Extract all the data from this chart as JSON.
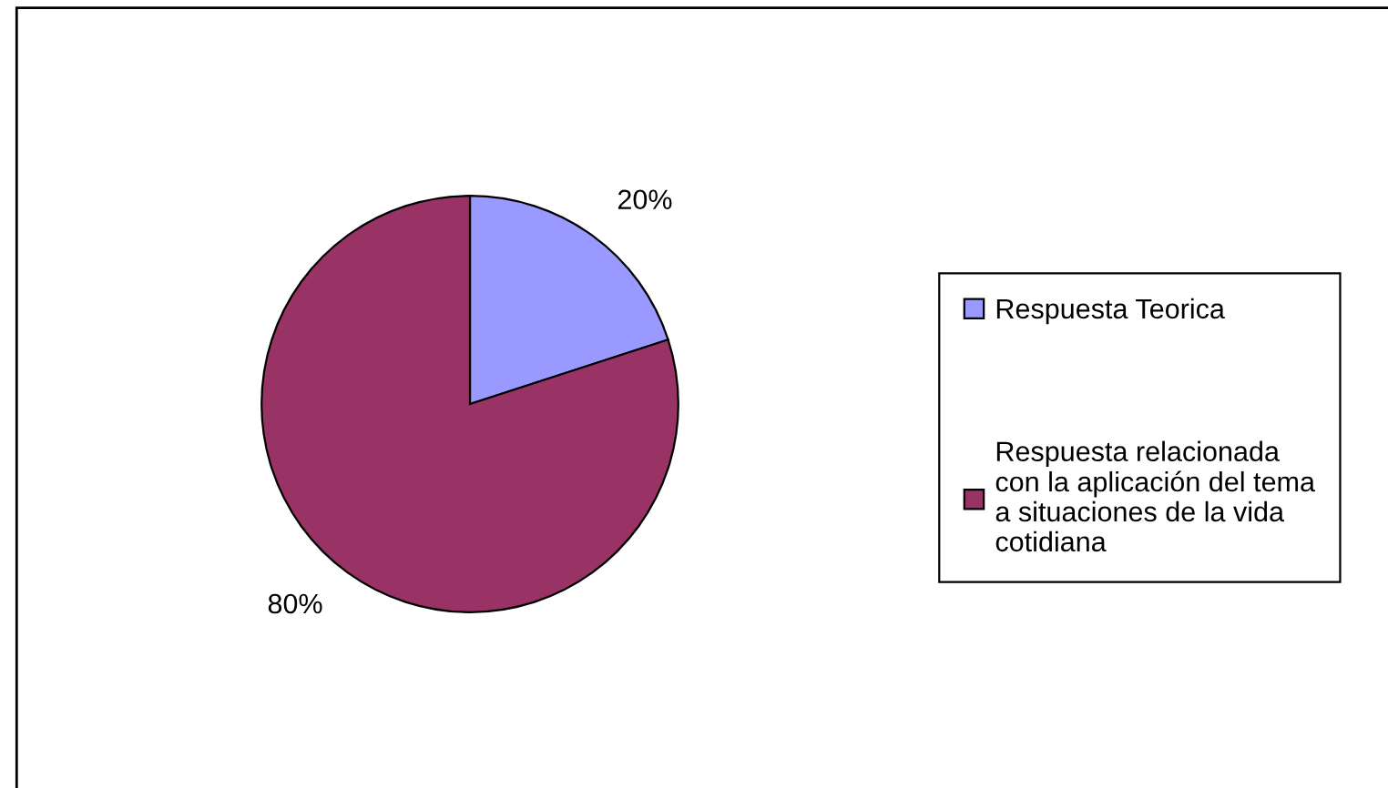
{
  "chart_data": {
    "type": "pie",
    "categories": [
      "Respuesta Teorica",
      "Respuesta relacionada\ncon la aplicación del tema\na situaciones de la vida\ncotidiana"
    ],
    "values": [
      20,
      80
    ],
    "colors": [
      "#9999ff",
      "#993366"
    ],
    "value_labels": [
      "20%",
      "80%"
    ],
    "legend": "right"
  }
}
